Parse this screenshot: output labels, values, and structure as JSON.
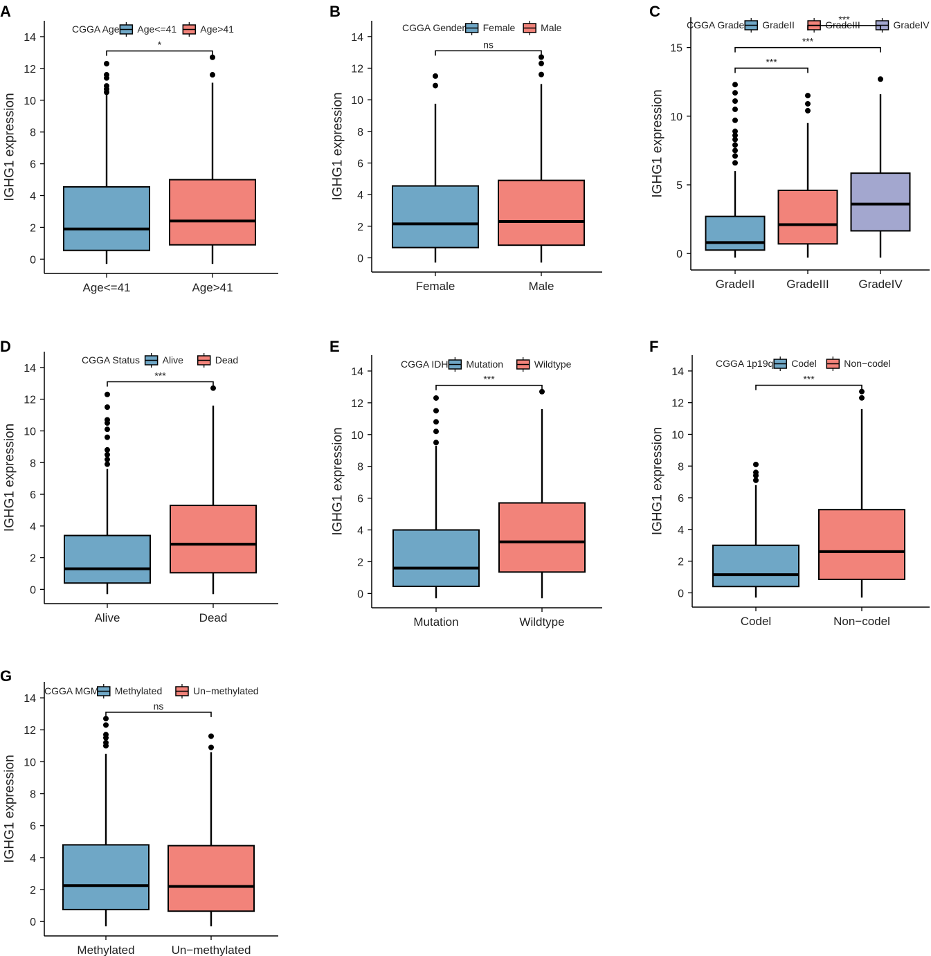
{
  "figure": {
    "width": 1345,
    "height": 1381
  },
  "colors": {
    "blue": "#6fa7c6",
    "red": "#f2837a",
    "purple": "#a3a7cf",
    "stroke": "#000000"
  },
  "chart_data": [
    {
      "panel": "A",
      "type": "box",
      "legend_title": "CGGA Age",
      "ylabel": "IGHG1 expression",
      "xlabel": "",
      "ylim": [
        -0.9,
        15
      ],
      "yticks": [
        0,
        2,
        4,
        6,
        8,
        10,
        12,
        14
      ],
      "categories": [
        "Age<=41",
        "Age>41"
      ],
      "boxes": [
        {
          "category": "Age<=41",
          "color": "blue",
          "whisker_low": -0.3,
          "q1": 0.55,
          "median": 1.9,
          "q3": 4.55,
          "whisker_high": 10.5,
          "outliers": [
            10.5,
            10.7,
            10.9,
            11.4,
            11.6,
            12.3
          ]
        },
        {
          "category": "Age>41",
          "color": "red",
          "whisker_low": -0.3,
          "q1": 0.9,
          "median": 2.4,
          "q3": 5.0,
          "whisker_high": 11.1,
          "outliers": [
            11.6,
            12.7
          ]
        }
      ],
      "comparisons": [
        {
          "groups": [
            1,
            2
          ],
          "y": 13.1,
          "label": "*"
        }
      ]
    },
    {
      "panel": "B",
      "type": "box",
      "legend_title": "CGGA Gender",
      "ylabel": "IGHG1 expression",
      "xlabel": "",
      "ylim": [
        -0.9,
        15
      ],
      "yticks": [
        0,
        2,
        4,
        6,
        8,
        10,
        12,
        14
      ],
      "categories": [
        "Female",
        "Male"
      ],
      "boxes": [
        {
          "category": "Female",
          "color": "blue",
          "whisker_low": -0.3,
          "q1": 0.65,
          "median": 2.15,
          "q3": 4.55,
          "whisker_high": 9.75,
          "outliers": [
            10.9,
            11.5
          ]
        },
        {
          "category": "Male",
          "color": "red",
          "whisker_low": -0.3,
          "q1": 0.8,
          "median": 2.3,
          "q3": 4.9,
          "whisker_high": 11.0,
          "outliers": [
            11.6,
            12.3,
            12.7
          ]
        }
      ],
      "comparisons": [
        {
          "groups": [
            1,
            2
          ],
          "y": 13.1,
          "label": "ns"
        }
      ]
    },
    {
      "panel": "C",
      "type": "box",
      "legend_title": "CGGA Grade",
      "ylabel": "IGHG1 expression",
      "xlabel": "",
      "ylim": [
        -1.2,
        17.2
      ],
      "yticks": [
        0,
        5,
        10,
        15
      ],
      "categories": [
        "GradeII",
        "GradeIII",
        "GradeIV"
      ],
      "boxes": [
        {
          "category": "GradeII",
          "color": "blue",
          "whisker_low": -0.3,
          "q1": 0.25,
          "median": 0.8,
          "q3": 2.7,
          "whisker_high": 6.0,
          "outliers": [
            6.6,
            7.1,
            7.5,
            7.9,
            8.3,
            8.6,
            8.9,
            9.7,
            10.5,
            11.1,
            11.7,
            12.3
          ]
        },
        {
          "category": "GradeIII",
          "color": "red",
          "whisker_low": -0.3,
          "q1": 0.7,
          "median": 2.1,
          "q3": 4.6,
          "whisker_high": 9.5,
          "outliers": [
            10.4,
            10.9,
            11.5
          ]
        },
        {
          "category": "GradeIV",
          "color": "purple",
          "whisker_low": -0.3,
          "q1": 1.65,
          "median": 3.6,
          "q3": 5.85,
          "whisker_high": 11.6,
          "outliers": [
            12.7
          ]
        }
      ],
      "comparisons": [
        {
          "groups": [
            1,
            2
          ],
          "y": 13.5,
          "label": "***"
        },
        {
          "groups": [
            1,
            3
          ],
          "y": 15.0,
          "label": "***"
        },
        {
          "groups": [
            2,
            3
          ],
          "y": 16.6,
          "label": "***"
        }
      ]
    },
    {
      "panel": "D",
      "type": "box",
      "legend_title": "CGGA Status",
      "ylabel": "IGHG1 expression",
      "xlabel": "",
      "ylim": [
        -0.9,
        15
      ],
      "yticks": [
        0,
        2,
        4,
        6,
        8,
        10,
        12,
        14
      ],
      "categories": [
        "Alive",
        "Dead"
      ],
      "boxes": [
        {
          "category": "Alive",
          "color": "blue",
          "whisker_low": -0.3,
          "q1": 0.4,
          "median": 1.3,
          "q3": 3.4,
          "whisker_high": 7.6,
          "outliers": [
            7.9,
            8.2,
            8.5,
            8.8,
            9.6,
            10.1,
            10.5,
            10.7,
            11.5,
            12.3
          ]
        },
        {
          "category": "Dead",
          "color": "red",
          "whisker_low": -0.3,
          "q1": 1.05,
          "median": 2.85,
          "q3": 5.3,
          "whisker_high": 11.6,
          "outliers": [
            12.7
          ]
        }
      ],
      "comparisons": [
        {
          "groups": [
            1,
            2
          ],
          "y": 13.1,
          "label": "***"
        }
      ]
    },
    {
      "panel": "E",
      "type": "box",
      "legend_title": "CGGA IDH",
      "ylabel": "IGHG1 expression",
      "xlabel": "",
      "ylim": [
        -0.9,
        15
      ],
      "yticks": [
        0,
        2,
        4,
        6,
        8,
        10,
        12,
        14
      ],
      "categories": [
        "Mutation",
        "Wildtype"
      ],
      "boxes": [
        {
          "category": "Mutation",
          "color": "blue",
          "whisker_low": -0.3,
          "q1": 0.45,
          "median": 1.6,
          "q3": 4.0,
          "whisker_high": 9.3,
          "outliers": [
            9.5,
            10.2,
            10.8,
            11.5,
            12.3
          ]
        },
        {
          "category": "Wildtype",
          "color": "red",
          "whisker_low": -0.3,
          "q1": 1.35,
          "median": 3.25,
          "q3": 5.7,
          "whisker_high": 11.6,
          "outliers": [
            12.7
          ]
        }
      ],
      "comparisons": [
        {
          "groups": [
            1,
            2
          ],
          "y": 13.1,
          "label": "***"
        }
      ]
    },
    {
      "panel": "F",
      "type": "box",
      "legend_title": "CGGA 1p19q",
      "ylabel": "IGHG1 expression",
      "xlabel": "",
      "ylim": [
        -0.9,
        15
      ],
      "yticks": [
        0,
        2,
        4,
        6,
        8,
        10,
        12,
        14
      ],
      "categories": [
        "Codel",
        "Non−codel"
      ],
      "boxes": [
        {
          "category": "Codel",
          "color": "blue",
          "whisker_low": -0.3,
          "q1": 0.4,
          "median": 1.15,
          "q3": 3.0,
          "whisker_high": 6.8,
          "outliers": [
            7.1,
            7.4,
            7.6,
            8.1
          ]
        },
        {
          "category": "Non−codel",
          "color": "red",
          "whisker_low": -0.3,
          "q1": 0.85,
          "median": 2.6,
          "q3": 5.25,
          "whisker_high": 11.6,
          "outliers": [
            12.3,
            12.7
          ]
        }
      ],
      "comparisons": [
        {
          "groups": [
            1,
            2
          ],
          "y": 13.1,
          "label": "***"
        }
      ]
    },
    {
      "panel": "G",
      "type": "box",
      "legend_title": "CGGA MGMT",
      "ylabel": "IGHG1 expression",
      "xlabel": "",
      "ylim": [
        -0.9,
        15
      ],
      "yticks": [
        0,
        2,
        4,
        6,
        8,
        10,
        12,
        14
      ],
      "categories": [
        "Methylated",
        "Un−methylated"
      ],
      "boxes": [
        {
          "category": "Methylated",
          "color": "blue",
          "whisker_low": -0.3,
          "q1": 0.75,
          "median": 2.25,
          "q3": 4.8,
          "whisker_high": 10.5,
          "outliers": [
            11.0,
            11.2,
            11.5,
            11.7,
            12.3,
            12.7
          ]
        },
        {
          "category": "Un−methylated",
          "color": "red",
          "whisker_low": -0.3,
          "q1": 0.65,
          "median": 2.2,
          "q3": 4.75,
          "whisker_high": 10.6,
          "outliers": [
            10.9,
            11.6
          ]
        }
      ],
      "comparisons": [
        {
          "groups": [
            1,
            2
          ],
          "y": 13.1,
          "label": "ns"
        }
      ]
    }
  ]
}
